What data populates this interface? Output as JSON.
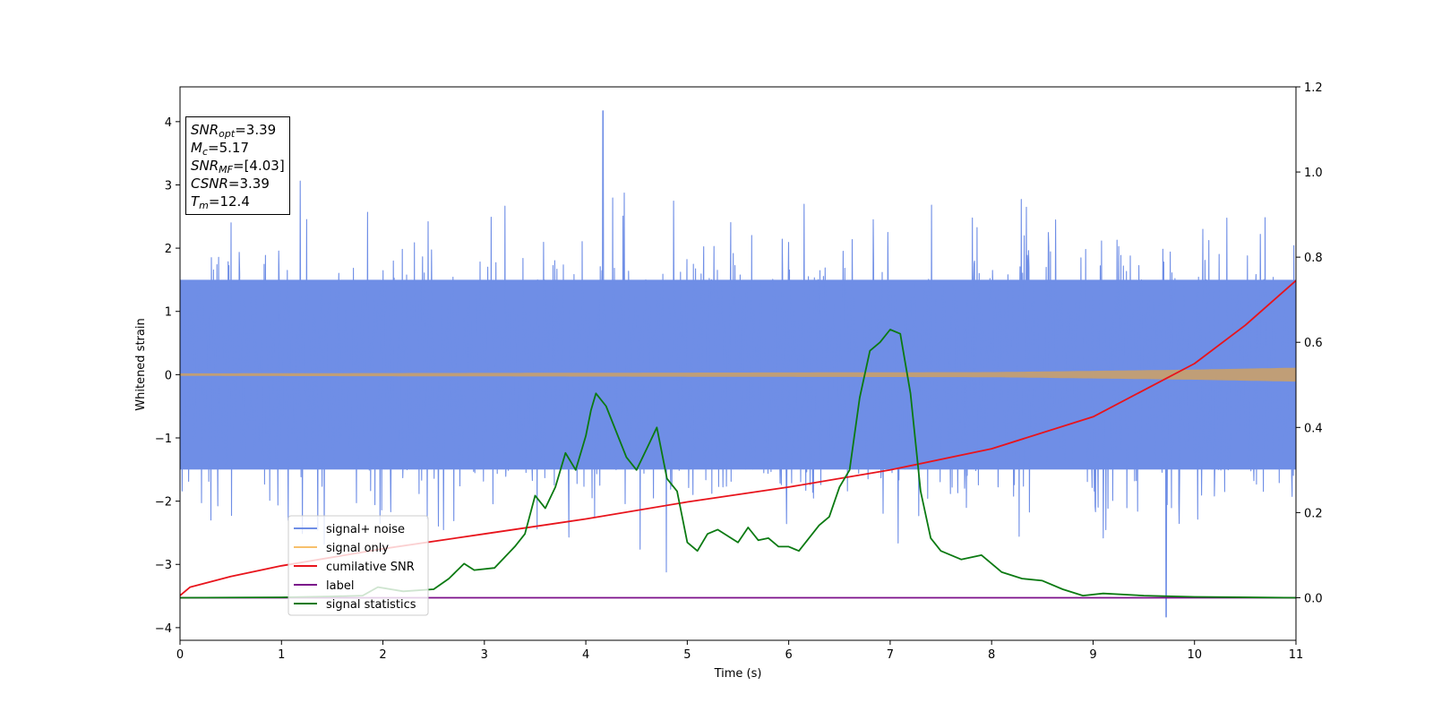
{
  "chart_data": {
    "type": "line",
    "xlabel": "Time (s)",
    "ylabel": "Whitened strain",
    "xlim": [
      0,
      11
    ],
    "ylim": [
      -4.2,
      4.55
    ],
    "y2lim": [
      -0.1,
      1.2
    ],
    "x_ticks": [
      "0",
      "1",
      "2",
      "3",
      "4",
      "5",
      "6",
      "7",
      "8",
      "9",
      "10",
      "11"
    ],
    "y_ticks": [
      "−4",
      "−3",
      "−2",
      "−1",
      "0",
      "1",
      "2",
      "3",
      "4"
    ],
    "y2_ticks": [
      "0.0",
      "0.2",
      "0.4",
      "0.6",
      "0.8",
      "1.0",
      "1.2"
    ],
    "grid": false,
    "legend_position": "lower-left",
    "legend": [
      {
        "name": "signal+ noise",
        "color": "#6f8ee6"
      },
      {
        "name": "signal only",
        "color": "#f7c06c"
      },
      {
        "name": "cumilative SNR",
        "color": "#e8141c"
      },
      {
        "name": "label",
        "color": "#7b0f8a"
      },
      {
        "name": "signal statistics",
        "color": "#0b7a12"
      }
    ],
    "series": [
      {
        "name": "signal+ noise",
        "axis": "left",
        "color": "#6f8ee6",
        "description_values": {
          "core_band": [
            -1.5,
            1.5
          ],
          "peak_max": 4.17,
          "peak_max_x": 4.17,
          "peak_min": -3.83,
          "peak_min_x": 9.72
        }
      },
      {
        "name": "signal only",
        "axis": "left",
        "color": "#f7c06c",
        "amplitude": [
          [
            0,
            0.02
          ],
          [
            8,
            0.04
          ],
          [
            9,
            0.06
          ],
          [
            10,
            0.08
          ],
          [
            11,
            0.11
          ]
        ]
      },
      {
        "name": "cumilative SNR",
        "axis": "right",
        "color": "#e8141c",
        "points": [
          [
            0,
            0.005
          ],
          [
            0.1,
            0.025
          ],
          [
            0.5,
            0.05
          ],
          [
            1,
            0.075
          ],
          [
            2,
            0.115
          ],
          [
            3,
            0.15
          ],
          [
            4,
            0.185
          ],
          [
            5,
            0.225
          ],
          [
            6,
            0.26
          ],
          [
            7,
            0.3
          ],
          [
            8,
            0.35
          ],
          [
            9,
            0.425
          ],
          [
            10,
            0.55
          ],
          [
            10.5,
            0.64
          ],
          [
            11,
            0.745
          ]
        ]
      },
      {
        "name": "label",
        "axis": "right",
        "color": "#7b0f8a",
        "points": [
          [
            0,
            0.0
          ],
          [
            11,
            0.0
          ]
        ]
      },
      {
        "name": "signal statistics",
        "axis": "right",
        "color": "#0b7a12",
        "points": [
          [
            0,
            0.0
          ],
          [
            1,
            0.001
          ],
          [
            1.5,
            0.003
          ],
          [
            1.8,
            0.005
          ],
          [
            1.95,
            0.025
          ],
          [
            2.2,
            0.015
          ],
          [
            2.5,
            0.02
          ],
          [
            2.65,
            0.045
          ],
          [
            2.8,
            0.08
          ],
          [
            2.9,
            0.065
          ],
          [
            3.1,
            0.07
          ],
          [
            3.3,
            0.12
          ],
          [
            3.4,
            0.15
          ],
          [
            3.5,
            0.24
          ],
          [
            3.6,
            0.21
          ],
          [
            3.7,
            0.26
          ],
          [
            3.8,
            0.34
          ],
          [
            3.9,
            0.3
          ],
          [
            4.0,
            0.38
          ],
          [
            4.05,
            0.44
          ],
          [
            4.1,
            0.48
          ],
          [
            4.2,
            0.45
          ],
          [
            4.4,
            0.33
          ],
          [
            4.5,
            0.3
          ],
          [
            4.6,
            0.35
          ],
          [
            4.7,
            0.4
          ],
          [
            4.8,
            0.28
          ],
          [
            4.9,
            0.25
          ],
          [
            5.0,
            0.13
          ],
          [
            5.1,
            0.11
          ],
          [
            5.2,
            0.15
          ],
          [
            5.3,
            0.16
          ],
          [
            5.5,
            0.13
          ],
          [
            5.6,
            0.165
          ],
          [
            5.7,
            0.135
          ],
          [
            5.8,
            0.14
          ],
          [
            5.9,
            0.12
          ],
          [
            6.0,
            0.12
          ],
          [
            6.1,
            0.11
          ],
          [
            6.3,
            0.17
          ],
          [
            6.4,
            0.19
          ],
          [
            6.5,
            0.26
          ],
          [
            6.6,
            0.3
          ],
          [
            6.7,
            0.47
          ],
          [
            6.8,
            0.58
          ],
          [
            6.9,
            0.6
          ],
          [
            7.0,
            0.63
          ],
          [
            7.1,
            0.62
          ],
          [
            7.2,
            0.48
          ],
          [
            7.3,
            0.25
          ],
          [
            7.4,
            0.14
          ],
          [
            7.5,
            0.11
          ],
          [
            7.7,
            0.09
          ],
          [
            7.9,
            0.1
          ],
          [
            8.1,
            0.06
          ],
          [
            8.3,
            0.045
          ],
          [
            8.5,
            0.04
          ],
          [
            8.7,
            0.02
          ],
          [
            8.9,
            0.005
          ],
          [
            9.1,
            0.01
          ],
          [
            9.5,
            0.005
          ],
          [
            10,
            0.002
          ],
          [
            11,
            0.0
          ]
        ]
      }
    ],
    "annotation_box": {
      "snr_opt": "=3.39",
      "mc": "=5.17",
      "snr_mf": "=[4.03]",
      "csnr": "=3.39",
      "tm": "=12.4"
    }
  }
}
